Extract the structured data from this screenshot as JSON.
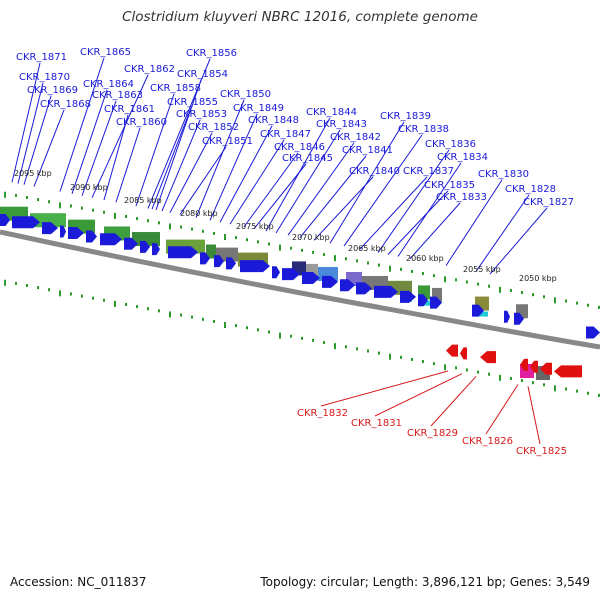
{
  "title": "Clostridium kluyveri NBRC 12016, complete genome",
  "footer": {
    "accession": "Accession: NC_011837",
    "info": "Topology: circular; Length: 3,896,121 bp; Genes: 3,549"
  },
  "kbp_labels": [
    "2095 kbp",
    "2090 kbp",
    "2085 kbp",
    "2080 kbp",
    "2075 kbp",
    "2070 kbp",
    "2065 kbp",
    "2060 kbp",
    "2055 kbp",
    "2050 kbp"
  ],
  "top_genes": [
    "CKR_1871",
    "CKR_1870",
    "CKR_1869",
    "CKR_1868",
    "CKR_1865",
    "CKR_1864",
    "CKR_1863",
    "CKR_1862",
    "CKR_1861",
    "CKR_1860",
    "CKR_1858",
    "CKR_1856",
    "CKR_1855",
    "CKR_1854",
    "CKR_1853",
    "CKR_1852",
    "CKR_1851",
    "CKR_1850",
    "CKR_1849",
    "CKR_1848",
    "CKR_1847",
    "CKR_1846",
    "CKR_1845",
    "CKR_1844",
    "CKR_1843",
    "CKR_1842",
    "CKR_1841",
    "CKR_1840",
    "CKR_1839",
    "CKR_1838",
    "CKR_1837",
    "CKR_1836",
    "CKR_1835",
    "CKR_1834",
    "CKR_1833",
    "CKR_1830",
    "CKR_1828",
    "CKR_1827"
  ],
  "bottom_genes": [
    "CKR_1832",
    "CKR_1831",
    "CKR_1829",
    "CKR_1826",
    "CKR_1825"
  ],
  "colors": {
    "forward_gene": "#1a1ad8",
    "reverse_gene": "#e01010",
    "backbone": "#888888",
    "tick": "#2a9a2a",
    "top_label": "#1a1ad8",
    "bottom_label": "#d81a1a"
  }
}
